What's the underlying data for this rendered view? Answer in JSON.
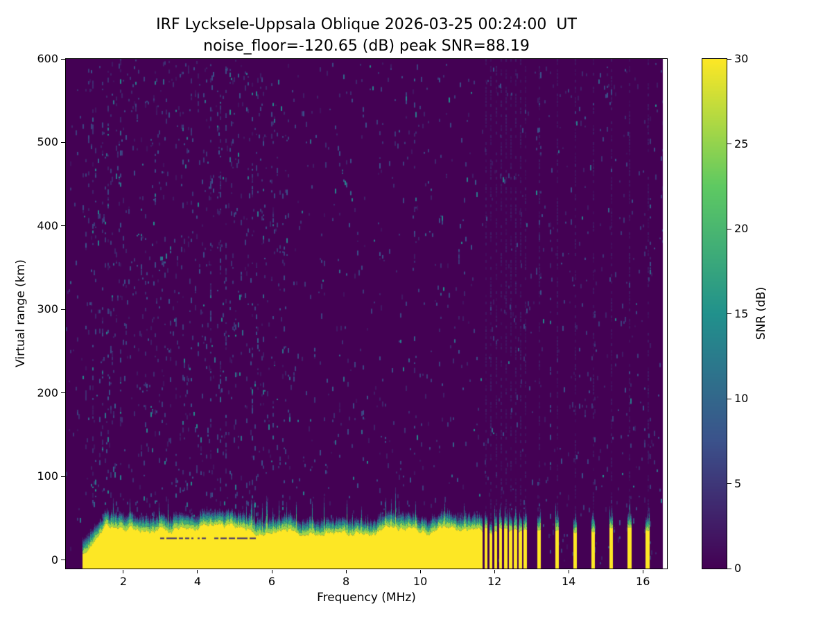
{
  "figure": {
    "background_color": "#ffffff"
  },
  "chart_data": {
    "type": "heatmap",
    "title": "IRF Lycksele-Uppsala Oblique 2026-03-25 00:24:00  UT",
    "subtitle": "noise_floor=-120.65 (dB) peak SNR=88.19",
    "xlabel": "Frequency (MHz)",
    "ylabel": "Virtual range (km)",
    "xlim": [
      0.45,
      16.65
    ],
    "ylim": [
      -10,
      600
    ],
    "xticks": [
      2,
      4,
      6,
      8,
      10,
      12,
      14,
      16
    ],
    "yticks": [
      0,
      100,
      200,
      300,
      400,
      500,
      600
    ],
    "grid": false,
    "legend": "none",
    "colorbar": {
      "label": "SNR (dB)",
      "ticks": [
        0,
        5,
        10,
        15,
        20,
        25,
        30
      ],
      "range": [
        0,
        30
      ],
      "colormap": "viridis"
    },
    "colormap_stops": [
      "#440154",
      "#3b528b",
      "#21918c",
      "#5ec962",
      "#fde725"
    ],
    "features": {
      "background_snr_db": 0,
      "echo_trace": {
        "description": "Saturated echo band at low virtual range, continuous across lower frequencies, ragged top edge with green/teal fringe above",
        "freq_start_mhz": 0.9,
        "freq_end_mhz": 11.66,
        "top_km_mean": 36,
        "top_km_jitter": 8,
        "fringe_km_typical": 14,
        "snr_db": 30
      },
      "stripe_group": {
        "description": "Closely spaced saturated vertical stripes after continuous band ends",
        "start_mhz": 11.76,
        "count": 9,
        "spacing_mhz": 0.133,
        "width_mhz": 0.065
      },
      "single_stripes_mhz": [
        13.19,
        13.68,
        14.16,
        14.65,
        15.14,
        15.63,
        16.12
      ],
      "single_stripe_width_mhz": 0.08,
      "noise": {
        "description": "Sparse teal/blue speckle noise over dark purple background, denser below ~6.5 MHz, with occasional vertical streaks and faint interference columns above stripes",
        "seed": 1337,
        "speckle_snr_range_db": [
          2,
          15
        ],
        "dense_below_mhz": 6.5
      },
      "data_right_edge_mhz": 16.54
    }
  }
}
